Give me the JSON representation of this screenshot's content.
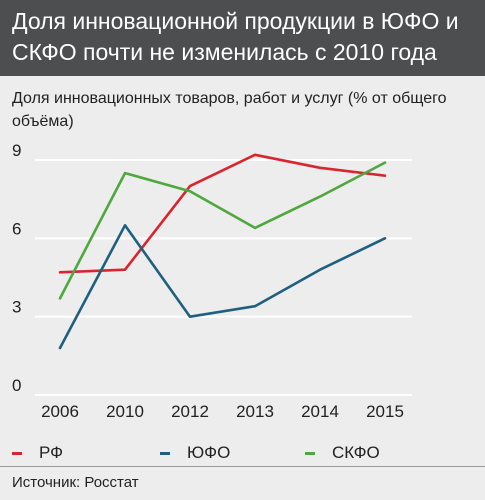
{
  "header": {
    "title": "Доля инновационной продукции в ЮФО и СКФО почти не изменилась с 2010 года"
  },
  "chart": {
    "subtitle": "Доля инновационных товаров, работ и услуг (% от общего объёма)",
    "source": "Источник: Росстат",
    "colors": {
      "background": "#ededee",
      "header": "#4d4e50",
      "grid": "#ffffff"
    }
  },
  "chart_data": {
    "type": "line",
    "title": "Доля инновационной продукции в ЮФО и СКФО почти не изменилась с 2010 года",
    "subtitle": "Доля инновационных товаров, работ и услуг (% от общего объёма)",
    "xlabel": "",
    "ylabel": "",
    "categories": [
      "2006",
      "2010",
      "2012",
      "2013",
      "2014",
      "2015"
    ],
    "ylim": [
      0,
      9
    ],
    "yticks": [
      "0",
      "3",
      "6",
      "9"
    ],
    "grid": true,
    "legend": "bottom",
    "series": [
      {
        "name": "РФ",
        "color": "#d9252f",
        "values": [
          4.7,
          4.8,
          8.0,
          9.2,
          8.7,
          8.4
        ]
      },
      {
        "name": "ЮФО",
        "color": "#1f5f7f",
        "values": [
          1.8,
          6.5,
          3.0,
          3.4,
          4.8,
          6.0
        ]
      },
      {
        "name": "СКФО",
        "color": "#4fa83d",
        "values": [
          3.7,
          8.5,
          7.8,
          6.4,
          7.6,
          8.9
        ]
      }
    ]
  }
}
